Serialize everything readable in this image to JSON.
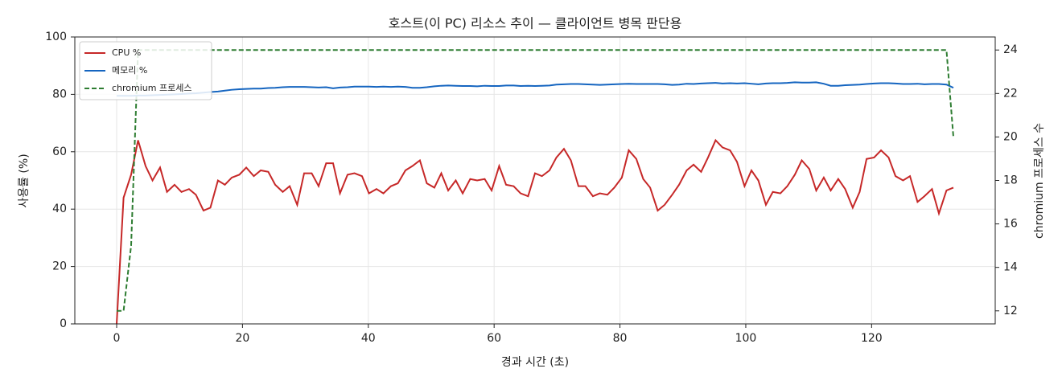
{
  "chart_data": {
    "type": "line",
    "title": "호스트(이 PC) 리소스 추이 — 클라이언트 병목 판단용",
    "xlabel": "경과 시간 (초)",
    "ylabel": "사용률 (%)",
    "y2label": "chromium 프로세스 수",
    "x": [
      0,
      1.1,
      2.3,
      3.4,
      4.6,
      5.7,
      6.9,
      8.0,
      9.2,
      10.3,
      11.5,
      12.6,
      13.8,
      14.9,
      16.1,
      17.2,
      18.3,
      19.5,
      20.6,
      21.8,
      22.9,
      24.1,
      25.2,
      26.4,
      27.5,
      28.7,
      29.8,
      31.0,
      32.1,
      33.3,
      34.4,
      35.5,
      36.7,
      37.8,
      39.0,
      40.1,
      41.3,
      42.4,
      43.6,
      44.7,
      45.9,
      47.0,
      48.2,
      49.3,
      50.5,
      51.6,
      52.7,
      53.9,
      55.0,
      56.2,
      57.3,
      58.5,
      59.6,
      60.8,
      61.9,
      63.1,
      64.2,
      65.4,
      66.5,
      67.6,
      68.8,
      69.9,
      71.1,
      72.2,
      73.4,
      74.5,
      75.7,
      76.8,
      78.0,
      79.1,
      80.3,
      81.4,
      82.6,
      83.7,
      84.8,
      86.0,
      87.1,
      88.3,
      89.4,
      90.6,
      91.7,
      92.9,
      94.0,
      95.2,
      96.3,
      97.5,
      98.6,
      99.8,
      100.9,
      102.0,
      103.2,
      104.3,
      105.5,
      106.6,
      107.8,
      108.9,
      110.1,
      111.2,
      112.4,
      113.5,
      114.7,
      115.8,
      117.0,
      118.1,
      119.2,
      120.4,
      121.5,
      122.7,
      123.8,
      125.0,
      126.1,
      127.3,
      128.4,
      129.6,
      130.7,
      131.9,
      133.0
    ],
    "series": [
      {
        "name": "CPU %",
        "color": "#c62828",
        "dash": false,
        "values": [
          0,
          44,
          52,
          64,
          55,
          50,
          54.5,
          46,
          48.5,
          46,
          47,
          45,
          39.5,
          40.5,
          50,
          48.5,
          51,
          52,
          54.5,
          51.5,
          53.5,
          53,
          48.5,
          46,
          48,
          41.5,
          52.5,
          52.5,
          48,
          56,
          56,
          45.5,
          52,
          52.5,
          51.5,
          45.5,
          47,
          45.5,
          48,
          49,
          53.5,
          55,
          57,
          49,
          47.5,
          52.5,
          46.5,
          50,
          45.5,
          50.5,
          50,
          50.5,
          46.5,
          55,
          48.5,
          48,
          45.5,
          44.5,
          52.5,
          51.5,
          53.5,
          58,
          61,
          57,
          48,
          48,
          44.5,
          45.5,
          45,
          47.5,
          51,
          60.5,
          57.5,
          50.5,
          47.5,
          39.5,
          41.5,
          45,
          48.5,
          53.5,
          55.5,
          53,
          58,
          64,
          61.5,
          60.5,
          56.5,
          48,
          53.5,
          50,
          41.5,
          46,
          45.5,
          48,
          52,
          57,
          54,
          46.5,
          51,
          46.5,
          50.5,
          47,
          40.5,
          46,
          57.5,
          58,
          60.5,
          58,
          51.5,
          50,
          51.5,
          42.5,
          44.5,
          47,
          38.5,
          46.5,
          47.5
        ]
      },
      {
        "name": "메모리 %",
        "color": "#1565c0",
        "dash": false,
        "values": [
          79.5,
          79.5,
          79.5,
          79.6,
          79.6,
          79.7,
          79.8,
          79.9,
          80.0,
          80.1,
          80.3,
          80.4,
          80.6,
          80.8,
          81.0,
          81.3,
          81.6,
          81.8,
          81.9,
          82.0,
          82.0,
          82.2,
          82.3,
          82.5,
          82.6,
          82.6,
          82.6,
          82.5,
          82.4,
          82.5,
          82.1,
          82.4,
          82.5,
          82.7,
          82.7,
          82.7,
          82.6,
          82.7,
          82.6,
          82.7,
          82.6,
          82.3,
          82.3,
          82.5,
          82.8,
          83.0,
          83.1,
          83.0,
          82.9,
          82.9,
          82.8,
          83.0,
          82.9,
          82.9,
          83.1,
          83.1,
          82.9,
          83.0,
          82.9,
          83.0,
          83.1,
          83.4,
          83.5,
          83.6,
          83.6,
          83.5,
          83.4,
          83.3,
          83.4,
          83.5,
          83.6,
          83.7,
          83.6,
          83.6,
          83.6,
          83.6,
          83.5,
          83.3,
          83.4,
          83.7,
          83.6,
          83.8,
          83.9,
          84.0,
          83.8,
          83.9,
          83.8,
          83.9,
          83.7,
          83.5,
          83.8,
          83.9,
          83.9,
          84.0,
          84.2,
          84.1,
          84.1,
          84.2,
          83.7,
          83.0,
          83.0,
          83.2,
          83.3,
          83.4,
          83.6,
          83.8,
          83.9,
          83.9,
          83.8,
          83.6,
          83.6,
          83.7,
          83.5,
          83.6,
          83.6,
          83.4,
          82.3
        ]
      },
      {
        "name": "chromium 프로세스",
        "color": "#2e7d32",
        "dash": true,
        "axis": "y2",
        "values": [
          12,
          12,
          15,
          24,
          24,
          24,
          24,
          24,
          24,
          24,
          24,
          24,
          24,
          24,
          24,
          24,
          24,
          24,
          24,
          24,
          24,
          24,
          24,
          24,
          24,
          24,
          24,
          24,
          24,
          24,
          24,
          24,
          24,
          24,
          24,
          24,
          24,
          24,
          24,
          24,
          24,
          24,
          24,
          24,
          24,
          24,
          24,
          24,
          24,
          24,
          24,
          24,
          24,
          24,
          24,
          24,
          24,
          24,
          24,
          24,
          24,
          24,
          24,
          24,
          24,
          24,
          24,
          24,
          24,
          24,
          24,
          24,
          24,
          24,
          24,
          24,
          24,
          24,
          24,
          24,
          24,
          24,
          24,
          24,
          24,
          24,
          24,
          24,
          24,
          24,
          24,
          24,
          24,
          24,
          24,
          24,
          24,
          24,
          24,
          24,
          24,
          24,
          24,
          24,
          24,
          24,
          24,
          24,
          24,
          24,
          24,
          24,
          24,
          24,
          24,
          24,
          20
        ]
      }
    ],
    "xlim": [
      -6.65,
      139.65
    ],
    "xticks": [
      0,
      20,
      40,
      60,
      80,
      100,
      120
    ],
    "ylim": [
      0,
      100
    ],
    "yticks": [
      0,
      20,
      40,
      60,
      80,
      100
    ],
    "y2lim": [
      11.4,
      24.6
    ],
    "y2ticks": [
      12,
      14,
      16,
      18,
      20,
      22,
      24
    ],
    "grid": true,
    "legend": "upper-left"
  }
}
